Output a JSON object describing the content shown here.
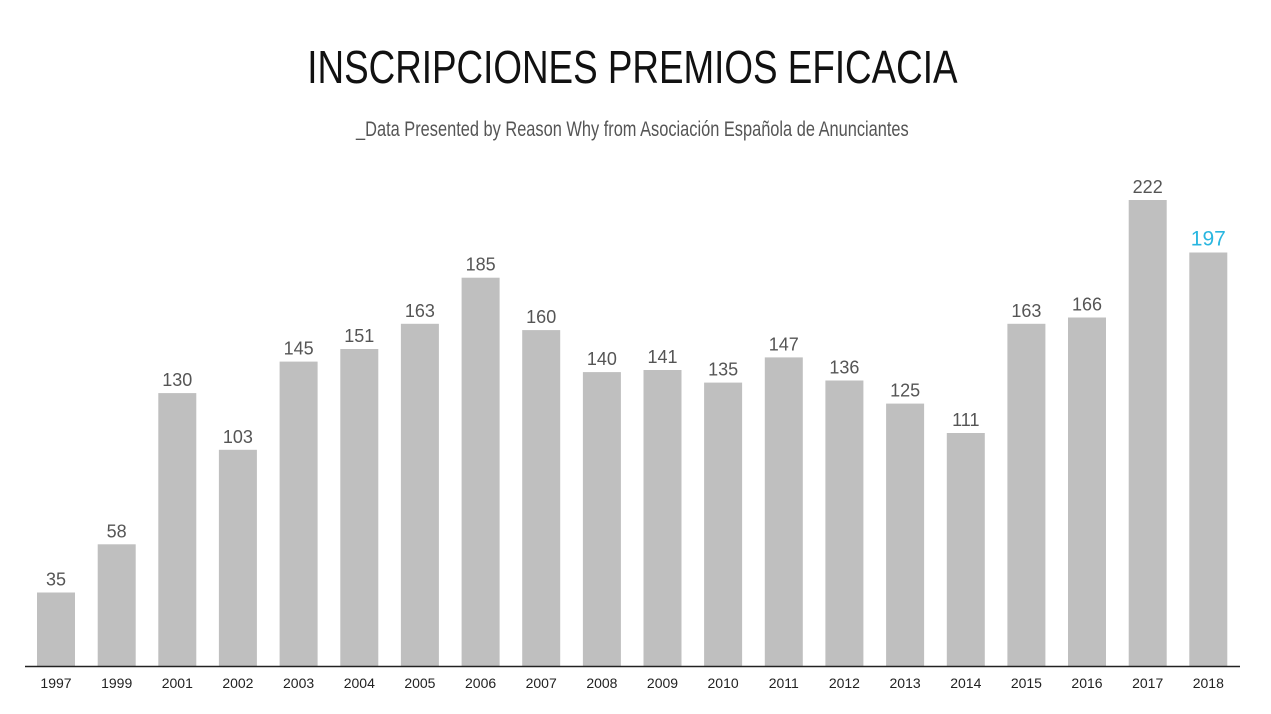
{
  "title": "INSCRIPCIONES PREMIOS EFICACIA",
  "subtitle": "_Data Presented by Reason Why from Asociación Española de Anunciantes",
  "chart_data": {
    "type": "bar",
    "title": "INSCRIPCIONES PREMIOS EFICACIA",
    "subtitle": "_Data Presented by Reason Why from Asociación Española de Anunciantes",
    "categories": [
      "1997",
      "1999",
      "2001",
      "2002",
      "2003",
      "2004",
      "2005",
      "2006",
      "2007",
      "2008",
      "2009",
      "2010",
      "2011",
      "2012",
      "2013",
      "2014",
      "2015",
      "2016",
      "2017",
      "2018"
    ],
    "values": [
      35,
      58,
      130,
      103,
      145,
      151,
      163,
      185,
      160,
      140,
      141,
      135,
      147,
      136,
      125,
      111,
      163,
      166,
      222,
      197
    ],
    "highlight_category": "2018",
    "ylim": [
      0,
      222
    ],
    "grid": false,
    "legend": "none",
    "xlabel": "",
    "ylabel": "",
    "colors": {
      "bar": "#bfbfbf",
      "value_label": "#555555",
      "highlight_label": "#29b6e0",
      "axis": "#222222",
      "tick_label": "#222222"
    }
  }
}
